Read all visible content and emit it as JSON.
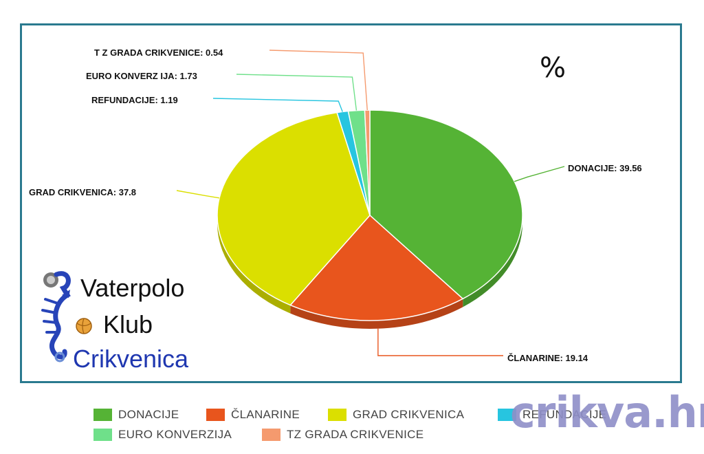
{
  "chart_data": {
    "type": "pie",
    "title": "%",
    "slices": [
      {
        "name": "DONACIJE",
        "label": "DONACIJE: 39.56",
        "value": 39.56,
        "color": "#55b335"
      },
      {
        "name": "ČLANARINE",
        "label": "ČLANARINE: 19.14",
        "value": 19.14,
        "color": "#e8551d"
      },
      {
        "name": "GRAD CRIKVENICA",
        "label": "GRAD CRIKVENICA: 37.8",
        "value": 37.8,
        "color": "#dbdf00"
      },
      {
        "name": "REFUNDACIJE",
        "label": "REFUNDACIJE: 1.19",
        "value": 1.19,
        "color": "#27c5e0"
      },
      {
        "name": "EURO KONVERZIJA",
        "label": "EURO KONVERZ IJA: 1.73",
        "value": 1.73,
        "color": "#6fe08a"
      },
      {
        "name": "TZ GRADA CRIKVENICE",
        "label": "T Z  GRADA CRIKVENICE: 0.54",
        "value": 0.54,
        "color": "#f59a6e"
      }
    ],
    "legend_position": "bottom",
    "legend": [
      "DONACIJE",
      "ČLANARINE",
      "GRAD CRIKVENICA",
      "REFUNDACIJE",
      "EURO KONVERZIJA",
      "TZ GRADA CRIKVENICE"
    ]
  },
  "logo": {
    "line1": "Vaterpolo",
    "line2": "Klub",
    "line3": "Crikvenica"
  },
  "watermark": "crikva.hr"
}
